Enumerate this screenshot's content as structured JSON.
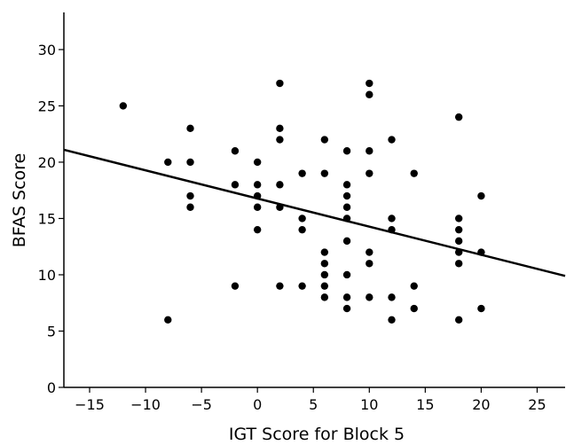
{
  "chart_data": {
    "type": "scatter",
    "title": "",
    "xlabel": "IGT Score for Block 5",
    "ylabel": "BFAS Score",
    "xlim": [
      -17.3,
      27.5
    ],
    "ylim": [
      0,
      33.3
    ],
    "x_ticks": [
      -15,
      -10,
      -5,
      0,
      5,
      10,
      15,
      20,
      25
    ],
    "y_ticks": [
      0,
      5,
      10,
      15,
      20,
      25,
      30
    ],
    "grid": false,
    "legend": "none",
    "colors": {
      "points": "#000000",
      "line": "#000000"
    },
    "points": [
      {
        "x": -12,
        "y": 25
      },
      {
        "x": -8,
        "y": 20
      },
      {
        "x": -8,
        "y": 6
      },
      {
        "x": -6,
        "y": 23
      },
      {
        "x": -6,
        "y": 20
      },
      {
        "x": -6,
        "y": 17
      },
      {
        "x": -6,
        "y": 16
      },
      {
        "x": -2,
        "y": 21
      },
      {
        "x": -2,
        "y": 18
      },
      {
        "x": -2,
        "y": 9
      },
      {
        "x": 0,
        "y": 20
      },
      {
        "x": 0,
        "y": 18
      },
      {
        "x": 0,
        "y": 17
      },
      {
        "x": 0,
        "y": 16
      },
      {
        "x": 0,
        "y": 14
      },
      {
        "x": 2,
        "y": 27
      },
      {
        "x": 2,
        "y": 23
      },
      {
        "x": 2,
        "y": 22
      },
      {
        "x": 2,
        "y": 18
      },
      {
        "x": 2,
        "y": 16
      },
      {
        "x": 2,
        "y": 9
      },
      {
        "x": 4,
        "y": 19
      },
      {
        "x": 4,
        "y": 15
      },
      {
        "x": 4,
        "y": 14
      },
      {
        "x": 4,
        "y": 9
      },
      {
        "x": 6,
        "y": 22
      },
      {
        "x": 6,
        "y": 19
      },
      {
        "x": 6,
        "y": 12
      },
      {
        "x": 6,
        "y": 11
      },
      {
        "x": 6,
        "y": 10
      },
      {
        "x": 6,
        "y": 9
      },
      {
        "x": 6,
        "y": 8
      },
      {
        "x": 8,
        "y": 21
      },
      {
        "x": 8,
        "y": 18
      },
      {
        "x": 8,
        "y": 17
      },
      {
        "x": 8,
        "y": 16
      },
      {
        "x": 8,
        "y": 15
      },
      {
        "x": 8,
        "y": 13
      },
      {
        "x": 8,
        "y": 10
      },
      {
        "x": 8,
        "y": 8
      },
      {
        "x": 8,
        "y": 7
      },
      {
        "x": 10,
        "y": 27
      },
      {
        "x": 10,
        "y": 26
      },
      {
        "x": 10,
        "y": 21
      },
      {
        "x": 10,
        "y": 19
      },
      {
        "x": 10,
        "y": 12
      },
      {
        "x": 10,
        "y": 11
      },
      {
        "x": 10,
        "y": 8
      },
      {
        "x": 12,
        "y": 22
      },
      {
        "x": 12,
        "y": 15
      },
      {
        "x": 12,
        "y": 14
      },
      {
        "x": 12,
        "y": 8
      },
      {
        "x": 12,
        "y": 6
      },
      {
        "x": 14,
        "y": 19
      },
      {
        "x": 14,
        "y": 9
      },
      {
        "x": 14,
        "y": 7
      },
      {
        "x": 18,
        "y": 24
      },
      {
        "x": 18,
        "y": 15
      },
      {
        "x": 18,
        "y": 14
      },
      {
        "x": 18,
        "y": 13
      },
      {
        "x": 18,
        "y": 12
      },
      {
        "x": 18,
        "y": 11
      },
      {
        "x": 18,
        "y": 6
      },
      {
        "x": 20,
        "y": 17
      },
      {
        "x": 20,
        "y": 12
      },
      {
        "x": 20,
        "y": 7
      }
    ],
    "fit_line": {
      "x": [
        -17.3,
        27.5
      ],
      "y": [
        21.1,
        9.9
      ]
    }
  }
}
